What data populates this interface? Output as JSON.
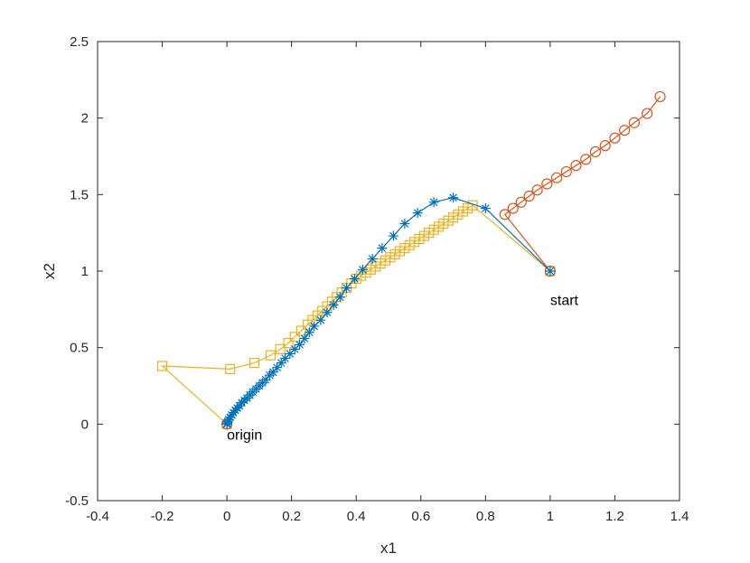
{
  "chart_data": {
    "type": "line",
    "xlabel": "x1",
    "ylabel": "x2",
    "xlim": [
      -0.4,
      1.4
    ],
    "ylim": [
      -0.5,
      2.5
    ],
    "xticks": [
      -0.4,
      -0.2,
      0,
      0.2,
      0.4,
      0.6,
      0.8,
      1,
      1.2,
      1.4
    ],
    "yticks": [
      -0.5,
      0,
      0.5,
      1,
      1.5,
      2,
      2.5
    ],
    "xtick_labels": [
      "-0.4",
      "-0.2",
      "0",
      "0.2",
      "0.4",
      "0.6",
      "0.8",
      "1",
      "1.2",
      "1.4"
    ],
    "ytick_labels": [
      "-0.5",
      "0",
      "0.5",
      "1",
      "1.5",
      "2",
      "2.5"
    ],
    "grid": false,
    "box": true,
    "annotations": [
      {
        "text": "origin",
        "x": 0,
        "y": -0.1
      },
      {
        "text": "start",
        "x": 1,
        "y": 0.78
      }
    ],
    "series": [
      {
        "color": "#0072BD",
        "marker": "asterisk",
        "x": [
          1,
          0.8,
          0.7,
          0.64,
          0.59,
          0.55,
          0.515,
          0.48,
          0.45,
          0.42,
          0.395,
          0.37,
          0.35,
          0.33,
          0.31,
          0.29,
          0.27,
          0.255,
          0.24,
          0.225,
          0.21,
          0.195,
          0.18,
          0.168,
          0.155,
          0.143,
          0.132,
          0.12,
          0.11,
          0.1,
          0.09,
          0.08,
          0.071,
          0.062,
          0.054,
          0.046,
          0.039,
          0.032,
          0.026,
          0.02,
          0.015,
          0.01,
          0.006,
          0.003,
          0.001,
          0
        ],
        "y": [
          1,
          1.41,
          1.48,
          1.45,
          1.38,
          1.31,
          1.23,
          1.15,
          1.08,
          1.01,
          0.95,
          0.89,
          0.83,
          0.78,
          0.73,
          0.68,
          0.64,
          0.6,
          0.56,
          0.52,
          0.49,
          0.46,
          0.43,
          0.4,
          0.37,
          0.34,
          0.32,
          0.29,
          0.27,
          0.25,
          0.23,
          0.21,
          0.19,
          0.17,
          0.155,
          0.14,
          0.12,
          0.105,
          0.09,
          0.075,
          0.06,
          0.045,
          0.03,
          0.018,
          0.008,
          0
        ]
      },
      {
        "color": "#D95319",
        "marker": "circle",
        "x": [
          1,
          0.86,
          0.885,
          0.91,
          0.935,
          0.96,
          0.99,
          1.02,
          1.05,
          1.08,
          1.11,
          1.14,
          1.17,
          1.2,
          1.23,
          1.26,
          1.3,
          1.34
        ],
        "y": [
          1,
          1.37,
          1.41,
          1.45,
          1.49,
          1.53,
          1.57,
          1.61,
          1.65,
          1.69,
          1.73,
          1.78,
          1.82,
          1.87,
          1.92,
          1.97,
          2.03,
          2.14
        ],
        "extra_points": [
          {
            "x": 0,
            "y": 0
          }
        ]
      },
      {
        "color": "#EDB120",
        "marker": "square",
        "x": [
          1,
          0.76,
          0.745,
          0.73,
          0.715,
          0.7,
          0.685,
          0.67,
          0.655,
          0.64,
          0.625,
          0.61,
          0.595,
          0.58,
          0.565,
          0.55,
          0.535,
          0.52,
          0.505,
          0.49,
          0.475,
          0.46,
          0.445,
          0.43,
          0.415,
          0.4,
          0.385,
          0.37,
          0.355,
          0.34,
          0.325,
          0.31,
          0.295,
          0.28,
          0.265,
          0.25,
          0.23,
          0.21,
          0.19,
          0.165,
          0.135,
          0.085,
          0.01,
          -0.2,
          0
        ],
        "y": [
          1,
          1.43,
          1.41,
          1.39,
          1.37,
          1.35,
          1.33,
          1.31,
          1.29,
          1.27,
          1.25,
          1.23,
          1.21,
          1.19,
          1.17,
          1.15,
          1.13,
          1.11,
          1.09,
          1.07,
          1.05,
          1.03,
          1.01,
          0.99,
          0.97,
          0.95,
          0.92,
          0.89,
          0.86,
          0.83,
          0.8,
          0.77,
          0.74,
          0.71,
          0.68,
          0.65,
          0.61,
          0.57,
          0.53,
          0.49,
          0.45,
          0.4,
          0.36,
          0.38,
          0
        ]
      }
    ]
  }
}
